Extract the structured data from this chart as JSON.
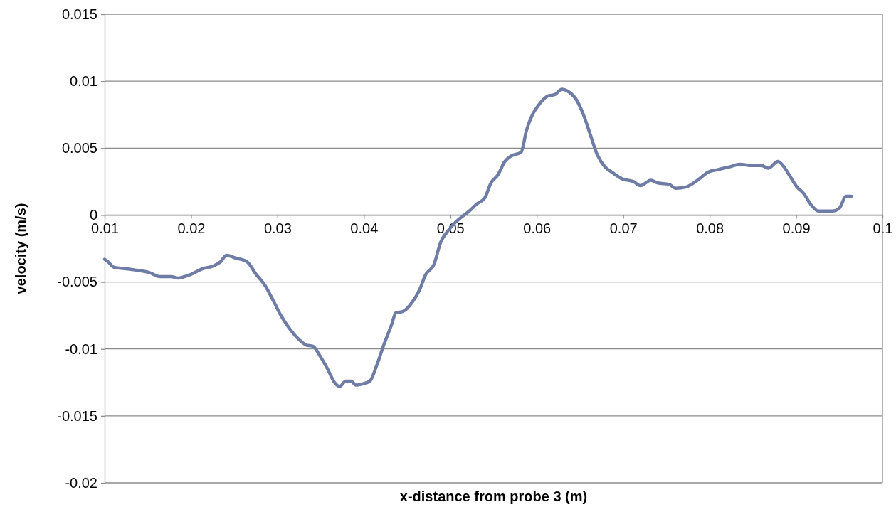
{
  "chart_data": {
    "type": "line",
    "xlabel": "x-distance from probe 3 (m)",
    "ylabel": "velocity (m/s)",
    "xlim": [
      0.01,
      0.1
    ],
    "xticks": [
      0.01,
      0.02,
      0.03,
      0.04,
      0.05,
      0.06,
      0.07,
      0.08,
      0.09,
      0.1
    ],
    "ylim": [
      -0.02,
      0.015
    ],
    "yticks": [
      -0.02,
      -0.015,
      -0.01,
      -0.005,
      0,
      0.005,
      0.01,
      0.015
    ],
    "grid": "y",
    "marker": "none",
    "line_style": "solid",
    "series": [
      {
        "color": "#6f7ca6",
        "x": [
          0.01,
          0.0104,
          0.0111,
          0.0123,
          0.0135,
          0.0152,
          0.0164,
          0.0177,
          0.0185,
          0.0197,
          0.0214,
          0.0226,
          0.0234,
          0.0241,
          0.0251,
          0.0265,
          0.0275,
          0.0285,
          0.0296,
          0.0304,
          0.0312,
          0.0325,
          0.0333,
          0.0341,
          0.0349,
          0.0358,
          0.0366,
          0.0372,
          0.0379,
          0.0385,
          0.0391,
          0.0399,
          0.0407,
          0.0415,
          0.0423,
          0.0432,
          0.0437,
          0.0445,
          0.0456,
          0.0465,
          0.0471,
          0.0481,
          0.0489,
          0.0497,
          0.0505,
          0.0514,
          0.0522,
          0.053,
          0.054,
          0.0547,
          0.0555,
          0.0563,
          0.057,
          0.0582,
          0.0588,
          0.0595,
          0.0602,
          0.0613,
          0.0621,
          0.0629,
          0.0637,
          0.0646,
          0.0654,
          0.0662,
          0.067,
          0.0679,
          0.0687,
          0.0699,
          0.0712,
          0.072,
          0.0732,
          0.074,
          0.0753,
          0.0761,
          0.0773,
          0.0786,
          0.0798,
          0.081,
          0.0823,
          0.0835,
          0.0847,
          0.086,
          0.0868,
          0.0879,
          0.0886,
          0.0893,
          0.0901,
          0.0909,
          0.0917,
          0.0926,
          0.0934,
          0.0942,
          0.095,
          0.0958,
          0.0964
        ],
        "values": [
          -0.0033,
          -0.0035,
          -0.0039,
          -0.004,
          -0.0041,
          -0.0043,
          -0.0046,
          -0.0046,
          -0.0047,
          -0.0045,
          -0.004,
          -0.0038,
          -0.0035,
          -0.003,
          -0.0032,
          -0.0035,
          -0.0044,
          -0.0052,
          -0.0065,
          -0.0075,
          -0.0083,
          -0.0093,
          -0.0097,
          -0.0098,
          -0.0105,
          -0.0115,
          -0.0125,
          -0.0128,
          -0.0124,
          -0.0124,
          -0.0127,
          -0.0126,
          -0.0124,
          -0.0112,
          -0.0097,
          -0.0082,
          -0.0073,
          -0.0072,
          -0.0065,
          -0.0055,
          -0.0045,
          -0.0037,
          -0.002,
          -0.0012,
          -0.0006,
          -0.0001,
          0.0003,
          0.0008,
          0.0013,
          0.0024,
          0.003,
          0.004,
          0.0044,
          0.0047,
          0.0063,
          0.0075,
          0.0082,
          0.0089,
          0.009,
          0.0094,
          0.0092,
          0.0086,
          0.0075,
          0.006,
          0.0045,
          0.0036,
          0.0032,
          0.0027,
          0.0025,
          0.0022,
          0.0026,
          0.0024,
          0.0023,
          0.002,
          0.0021,
          0.0026,
          0.0032,
          0.0034,
          0.0036,
          0.0038,
          0.0037,
          0.0037,
          0.0035,
          0.004,
          0.0036,
          0.0029,
          0.0021,
          0.0016,
          0.0008,
          0.0003,
          0.0003,
          0.0003,
          0.0005,
          0.0014,
          0.0014
        ]
      }
    ]
  }
}
